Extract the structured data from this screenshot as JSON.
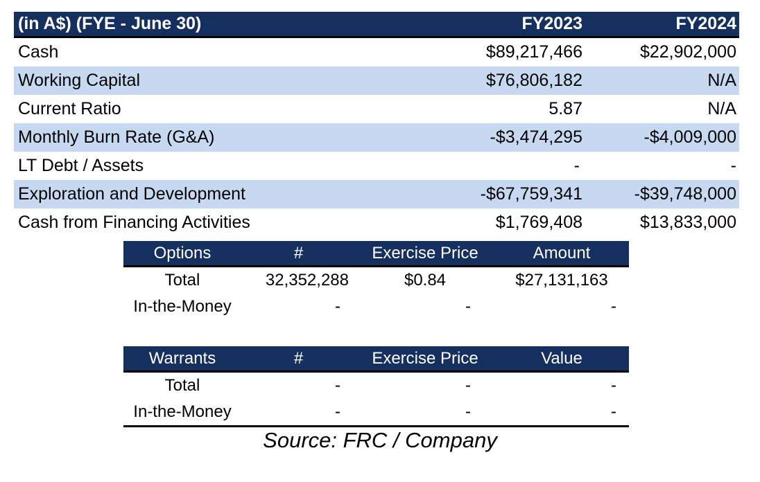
{
  "main_table": {
    "header": {
      "label": "(in A$)  (FYE - June 30)",
      "fy2023": "FY2023",
      "fy2024": "FY2024"
    },
    "rows": [
      {
        "label": "Cash",
        "fy2023": "$89,217,466",
        "fy2024": "$22,902,000"
      },
      {
        "label": "Working Capital",
        "fy2023": "$76,806,182",
        "fy2024": "N/A"
      },
      {
        "label": "Current Ratio",
        "fy2023": "5.87",
        "fy2024": "N/A"
      },
      {
        "label": "Monthly Burn Rate (G&A)",
        "fy2023": "-$3,474,295",
        "fy2024": "-$4,009,000"
      },
      {
        "label": "LT Debt / Assets",
        "fy2023": "-",
        "fy2024": "-"
      },
      {
        "label": "Exploration and Development",
        "fy2023": "-$67,759,341",
        "fy2024": "-$39,748,000"
      },
      {
        "label": "Cash from Financing Activities",
        "fy2023": "$1,769,408",
        "fy2024": "$13,833,000"
      }
    ]
  },
  "options_table": {
    "header": {
      "name": "Options",
      "count": "#",
      "price": "Exercise Price",
      "amount": "Amount"
    },
    "rows": [
      {
        "name": "Total",
        "count": "32,352,288",
        "price": "$0.84",
        "amount": "$27,131,163"
      },
      {
        "name": "In-the-Money",
        "count": "-",
        "price": "-",
        "amount": "-"
      }
    ]
  },
  "warrants_table": {
    "header": {
      "name": "Warrants",
      "count": "#",
      "price": "Exercise Price",
      "amount": "Value"
    },
    "rows": [
      {
        "name": "Total",
        "count": "-",
        "price": "-",
        "amount": "-"
      },
      {
        "name": "In-the-Money",
        "count": "-",
        "price": "-",
        "amount": "-"
      }
    ]
  },
  "source": "Source: FRC / Company",
  "colors": {
    "header_bg": "#15305f",
    "stripe": "#c6d9f1"
  }
}
